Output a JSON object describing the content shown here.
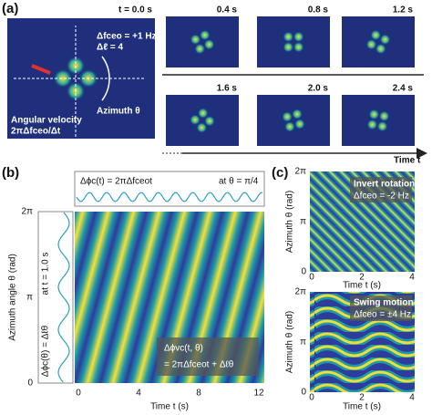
{
  "panel_a": {
    "label": "(a)",
    "time0": "t = 0.0 s",
    "dfceo": "Δfceo = +1 Hz",
    "dl": "Δℓ = 4",
    "azimuth": "Azimuth θ",
    "angular_velocity": "Angular velocity",
    "angular_formula": "2πΔfceo/Δt",
    "snapshots": [
      "0.4 s",
      "0.8 s",
      "1.2 s",
      "1.6 s",
      "2.0 s",
      "2.4 s"
    ],
    "time_axis": "Time t"
  },
  "panel_b": {
    "label": "(b)",
    "top_formula": "Δϕc(t) = 2πΔfceot",
    "top_note": "at θ = π/4",
    "left_note": "at t = 1.0 s",
    "left_formula": "Δϕc(θ) = Δℓθ",
    "y_label": "Azimuth angle θ (rad)",
    "y_ticks": [
      "2π",
      "π",
      "0"
    ],
    "x_ticks": [
      "0",
      "4",
      "8",
      "12"
    ],
    "x_label": "Time t (s)",
    "map_formula_1": "Δϕvc(t, θ)",
    "map_formula_2": "= 2πΔfceot + Δℓθ"
  },
  "panel_c": {
    "label": "(c)",
    "top_title": "Invert rotation",
    "top_note": "Δfceo = -2 Hz",
    "bottom_title": "Swing motion",
    "bottom_note": "Δfceo = ±4 Hz",
    "y_label": "Azimuth θ (rad)",
    "y_ticks": [
      "2π",
      "π",
      "0"
    ],
    "x_ticks": [
      "0",
      "2",
      "4"
    ],
    "x_label": "Time t (s)"
  }
}
